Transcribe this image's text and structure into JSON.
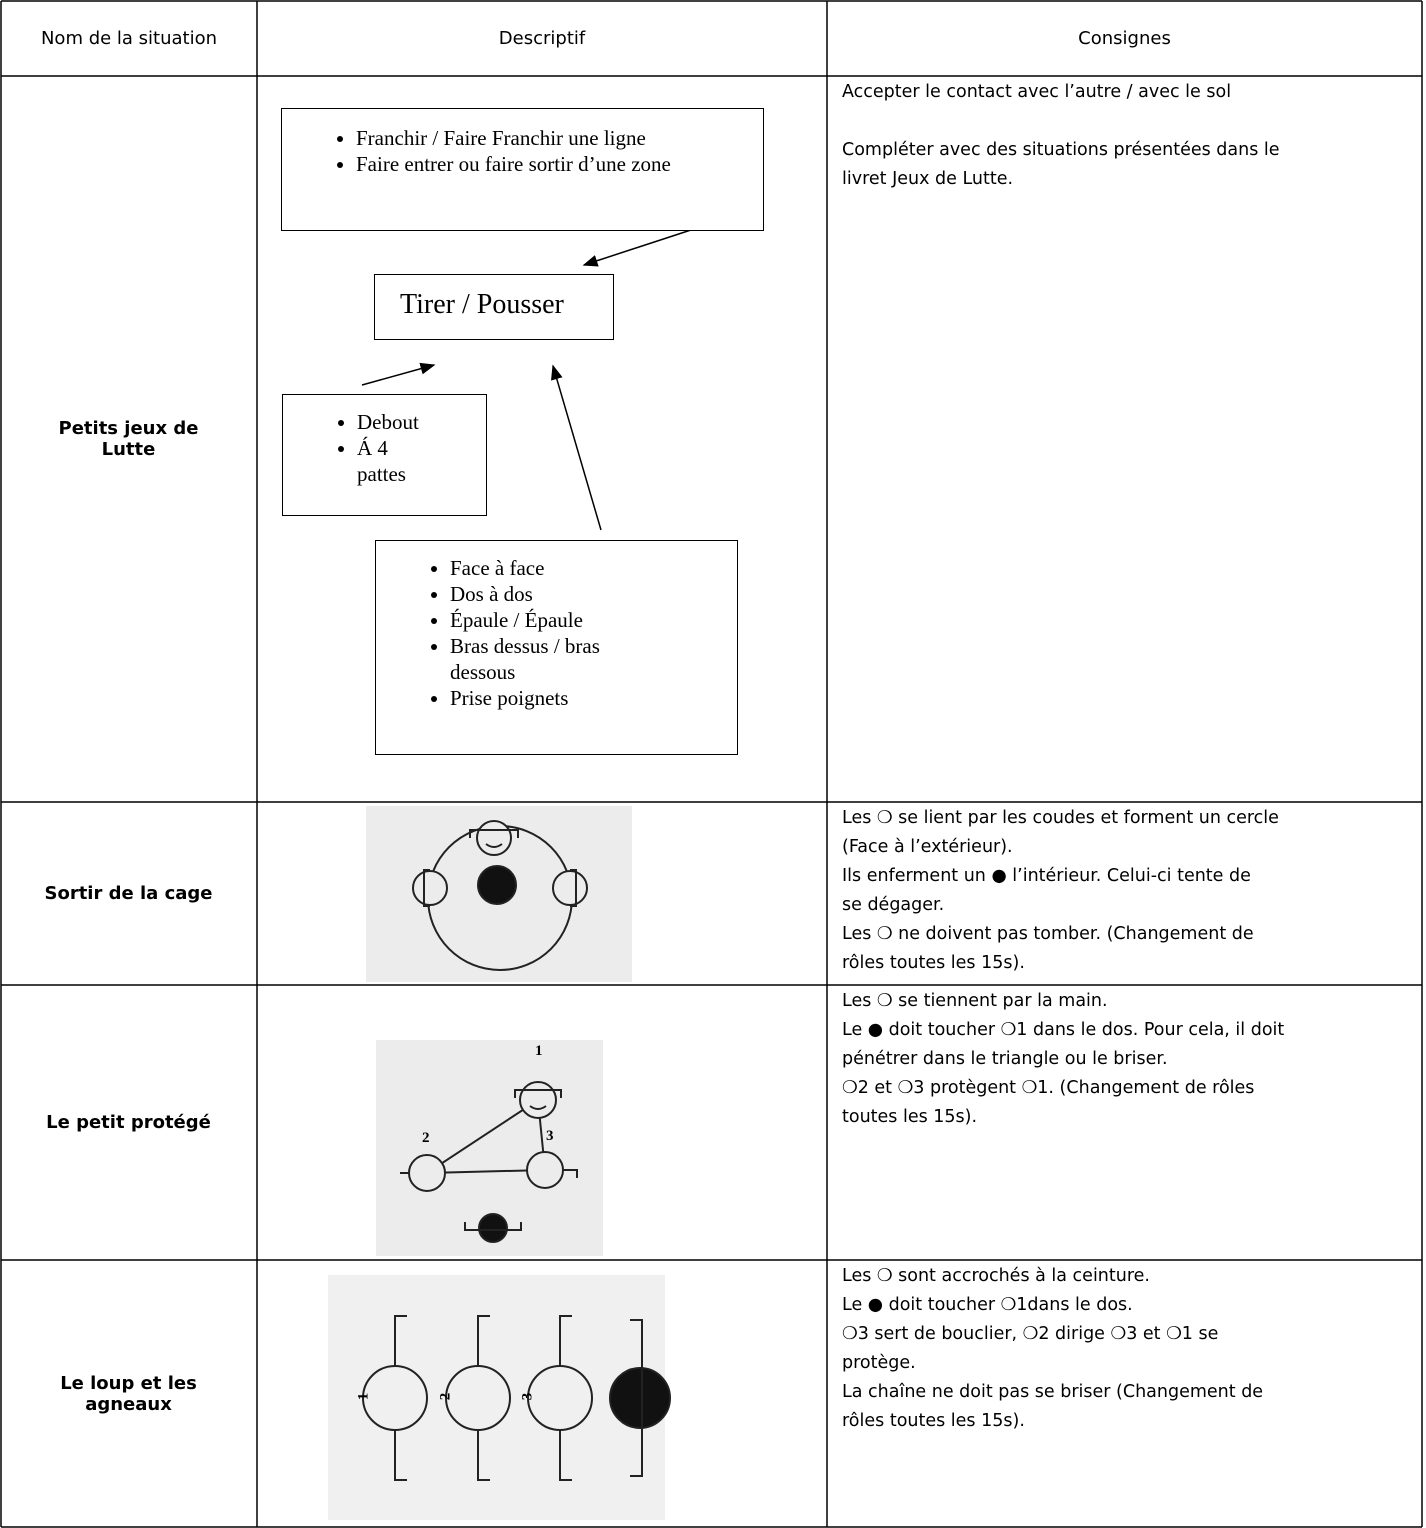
{
  "table": {
    "header": {
      "name": "Nom de la situation",
      "descriptif": "Descriptif",
      "consignes": "Consignes"
    },
    "rows": [
      {
        "name": "Petits jeux de Lutte",
        "diagram": {
          "goals": [
            "Franchir / Faire Franchir une ligne",
            "Faire entrer ou faire sortir d’une zone"
          ],
          "center": "Tirer / Pousser",
          "positions": [
            "Debout",
            "Á 4 pattes"
          ],
          "grips": [
            "Face à face",
            "Dos à dos",
            "Épaule / Épaule",
            "Bras dessus / bras dessous",
            "Prise poignets"
          ]
        },
        "consignes": [
          "Accepter le contact avec l’autre / avec le sol",
          "Compléter avec des situations présentées dans le",
          "livret Jeux de Lutte."
        ]
      },
      {
        "name": "Sortir de la cage",
        "consignes": [
          "Les ❍ se lient par les coudes et forment un cercle",
          "(Face à l’extérieur).",
          "Ils enferment un ● l’intérieur. Celui-ci tente de",
          "se dégager.",
          "Les ❍ ne doivent pas tomber. (Changement de",
          "rôles toutes les 15s)."
        ]
      },
      {
        "name": "Le petit protégé",
        "figure_labels": [
          "1",
          "2",
          "3"
        ],
        "consignes": [
          "Les ❍ se tiennent par la main.",
          "Le ● doit toucher ❍1 dans le dos. Pour cela, il doit",
          "pénétrer dans le triangle ou le briser.",
          "❍2 et ❍3 protègent ❍1. (Changement de rôles",
          "toutes les 15s)."
        ]
      },
      {
        "name": "Le loup et les agneaux",
        "figure_labels": [
          "1",
          "2",
          "3"
        ],
        "consignes": [
          "Les ❍ sont accrochés à la ceinture.",
          "Le ● doit toucher ❍1dans le dos.",
          "❍3 sert de bouclier, ❍2 dirige ❍3 et ❍1 se",
          "protège.",
          "La chaîne ne doit pas se briser (Changement de",
          "rôles toutes les 15s)."
        ]
      }
    ]
  }
}
